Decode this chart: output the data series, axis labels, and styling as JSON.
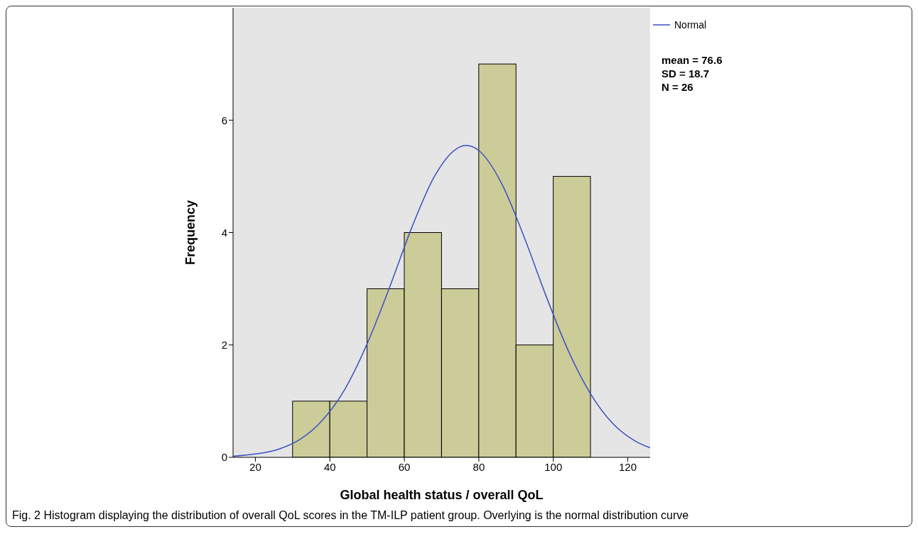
{
  "chart_data": {
    "type": "histogram",
    "xlabel": "Global health status / overall QoL",
    "ylabel": "Frequency",
    "bins": [
      30,
      40,
      50,
      60,
      70,
      80,
      90,
      100,
      110
    ],
    "values": [
      1,
      1,
      3,
      4,
      3,
      7,
      2,
      5
    ],
    "color": "#cccc99",
    "series": [
      {
        "type": "line",
        "name": "Normal",
        "color": "#3b4fc4",
        "x": [
          14,
          20,
          26,
          32,
          38,
          44,
          50,
          56,
          62,
          68,
          74,
          76.6,
          80,
          86,
          92,
          98,
          104,
          110,
          116,
          122,
          126
        ],
        "values": [
          0.02,
          0.06,
          0.14,
          0.32,
          0.66,
          1.21,
          2.02,
          3.02,
          4.09,
          4.99,
          5.49,
          5.55,
          5.46,
          4.89,
          3.95,
          2.88,
          1.9,
          1.13,
          0.6,
          0.29,
          0.17
        ]
      }
    ],
    "xlim": [
      14,
      126
    ],
    "xticks": [
      20,
      40,
      60,
      80,
      100,
      120
    ],
    "ylim": [
      0,
      8
    ],
    "yticks": [
      0,
      2,
      4,
      6
    ],
    "grid": false,
    "legend": "top right",
    "annotations": [
      "mean = 76.6",
      "SD = 18.7",
      "N = 26",
      "Fig. 2 Histogram displaying the distribution of overall QoL scores in the TM-ILP patient group. Overlying is the normal distribution curve"
    ]
  }
}
